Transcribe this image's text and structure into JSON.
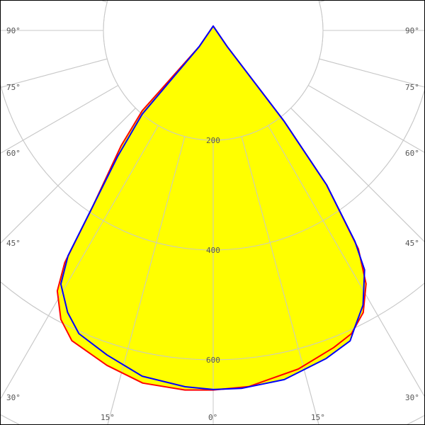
{
  "chart_data": {
    "type": "polar-line",
    "angle_unit": "degrees",
    "radial_ticks": [
      200,
      400,
      600
    ],
    "radial_tick_labels": [
      "200",
      "400",
      "600"
    ],
    "angle_tick_labels_left": [
      "90°",
      "75°",
      "60°",
      "45°",
      "30°",
      "15°"
    ],
    "angle_tick_labels_right": [
      "90°",
      "75°",
      "60°",
      "45°",
      "30°",
      "15°"
    ],
    "angle_tick_label_center": "0°",
    "angle_ticks": [
      0,
      15,
      30,
      45,
      60,
      75,
      90,
      105,
      120,
      135,
      150,
      165,
      180
    ],
    "grid": true,
    "fill_color": "#ffff00",
    "series": [
      {
        "color": "#ff0000",
        "points": [
          [
            -180,
            8
          ],
          [
            -41,
            39
          ],
          [
            -41.5,
            195
          ],
          [
            -38.6,
            269
          ],
          [
            -34.4,
            388
          ],
          [
            -32.6,
            502
          ],
          [
            -30.9,
            553
          ],
          [
            -27.8,
            595
          ],
          [
            -24.5,
            621
          ],
          [
            -17.6,
            640
          ],
          [
            -11.3,
            655
          ],
          [
            -4.5,
            657
          ],
          [
            0,
            655
          ],
          [
            5.7,
            652
          ],
          [
            14.1,
            636
          ],
          [
            20.8,
            618
          ],
          [
            24.5,
            607
          ],
          [
            28,
            582
          ],
          [
            31.1,
            539
          ],
          [
            33.6,
            478
          ],
          [
            36.3,
            349
          ],
          [
            38,
            209
          ],
          [
            41,
            39
          ],
          [
            180,
            8
          ]
        ]
      },
      {
        "color": "#0000ff",
        "points": [
          [
            -180,
            8
          ],
          [
            -41,
            39
          ],
          [
            -40.3,
            200
          ],
          [
            -37.2,
            288
          ],
          [
            -34.4,
            388
          ],
          [
            -32.8,
            488
          ],
          [
            -31,
            539
          ],
          [
            -27.3,
            578
          ],
          [
            -23.9,
            604
          ],
          [
            -18.1,
            622
          ],
          [
            -11.6,
            643
          ],
          [
            -4.5,
            651
          ],
          [
            0,
            654
          ],
          [
            4.5,
            654
          ],
          [
            11.5,
            649
          ],
          [
            19,
            632
          ],
          [
            23.8,
            618
          ],
          [
            25.6,
            598
          ],
          [
            28.6,
            570
          ],
          [
            32.3,
            516
          ],
          [
            33.9,
            463
          ],
          [
            36.3,
            349
          ],
          [
            38,
            209
          ],
          [
            41,
            39
          ],
          [
            180,
            8
          ]
        ]
      }
    ]
  }
}
